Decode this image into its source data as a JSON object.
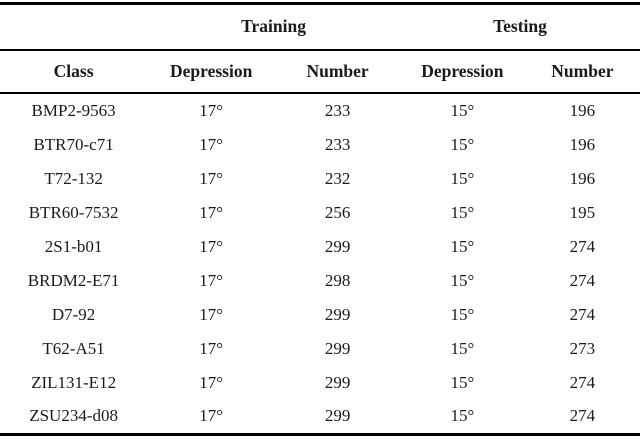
{
  "table": {
    "group_headers": [
      {
        "label": ""
      },
      {
        "label": "Training"
      },
      {
        "label": "Testing"
      }
    ],
    "column_headers": [
      "Class",
      "Depression",
      "Number",
      "Depression",
      "Number"
    ],
    "rows": [
      [
        "BMP2-9563",
        "17°",
        "233",
        "15°",
        "196"
      ],
      [
        "BTR70-c71",
        "17°",
        "233",
        "15°",
        "196"
      ],
      [
        "T72-132",
        "17°",
        "232",
        "15°",
        "196"
      ],
      [
        "BTR60-7532",
        "17°",
        "256",
        "15°",
        "195"
      ],
      [
        "2S1-b01",
        "17°",
        "299",
        "15°",
        "274"
      ],
      [
        "BRDM2-E71",
        "17°",
        "298",
        "15°",
        "274"
      ],
      [
        "D7-92",
        "17°",
        "299",
        "15°",
        "274"
      ],
      [
        "T62-A51",
        "17°",
        "299",
        "15°",
        "273"
      ],
      [
        "ZIL131-E12",
        "17°",
        "299",
        "15°",
        "274"
      ],
      [
        "ZSU234-d08",
        "17°",
        "299",
        "15°",
        "274"
      ]
    ],
    "colors": {
      "rule": "#000000",
      "text": "#1a1a1a",
      "background": "#ffffff"
    }
  }
}
